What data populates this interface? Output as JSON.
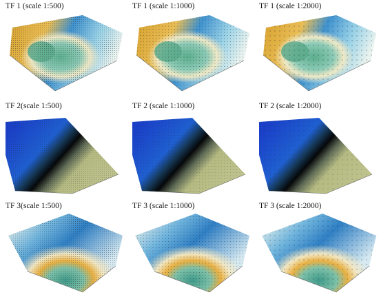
{
  "panels": [
    {
      "title": "TF 1 (scale 1:500)",
      "surface": "TF1",
      "mesh": "dense"
    },
    {
      "title": "TF 1 (scale 1:1000)",
      "surface": "TF1",
      "mesh": "medium"
    },
    {
      "title": "TF 1 (scale 1:2000)",
      "surface": "TF1",
      "mesh": "sparse"
    },
    {
      "title": "TF 2(scale 1:500)",
      "surface": "TF2",
      "mesh": "dense"
    },
    {
      "title": "TF 2 (scale 1:1000)",
      "surface": "TF2",
      "mesh": "medium"
    },
    {
      "title": "TF 2 (scale 1:2000)",
      "surface": "TF2",
      "mesh": "sparse"
    },
    {
      "title": "TF 3(scale 1:500)",
      "surface": "TF3",
      "mesh": "dense"
    },
    {
      "title": "TF 3 (scale 1:1000)",
      "surface": "TF3",
      "mesh": "medium"
    },
    {
      "title": "TF 3 (scale 1:2000)",
      "surface": "TF3",
      "mesh": "sparse"
    }
  ],
  "colors": {
    "high_blue": "#2f7fc4",
    "light_blue": "#8fd0e8",
    "pale": "#f4f0dc",
    "orange": "#e6ad3a",
    "teal": "#6fb8a0",
    "deep_blue": "#1a4fd0",
    "black_band": "#0b0f12",
    "olive": "#b8bd86"
  }
}
